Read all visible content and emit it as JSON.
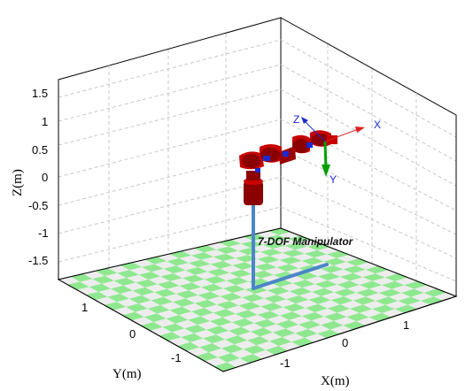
{
  "plot": {
    "z_axis_label": "Z(m)",
    "y_axis_label": "Y(m)",
    "x_axis_label": "X(m)",
    "z_ticks": [
      "1.5",
      "1",
      "0.5",
      "0",
      "-0.5",
      "-1",
      "-1.5"
    ],
    "y_ticks": [
      "1",
      "0",
      "-1"
    ],
    "x_ticks": [
      "-1",
      "0",
      "1"
    ],
    "robot_label": "7-DOF Manipulator",
    "frame_x_label": "X",
    "frame_y_label": "Y",
    "frame_z_label": "Z"
  },
  "colors": {
    "floor_green": "#8fe890",
    "floor_white": "#ededed",
    "link_dark_red": "#8b0000",
    "link_red": "#c80000",
    "joint_blue": "#1a2ad0",
    "base_line_blue": "#4a86c8",
    "frame_x": "#e02020",
    "frame_y": "#00a000",
    "frame_z": "#1a2ad0",
    "grid": "#c8c8c8"
  },
  "icons": [
    "coordinate-frame-icon",
    "manipulator-arm-icon"
  ]
}
